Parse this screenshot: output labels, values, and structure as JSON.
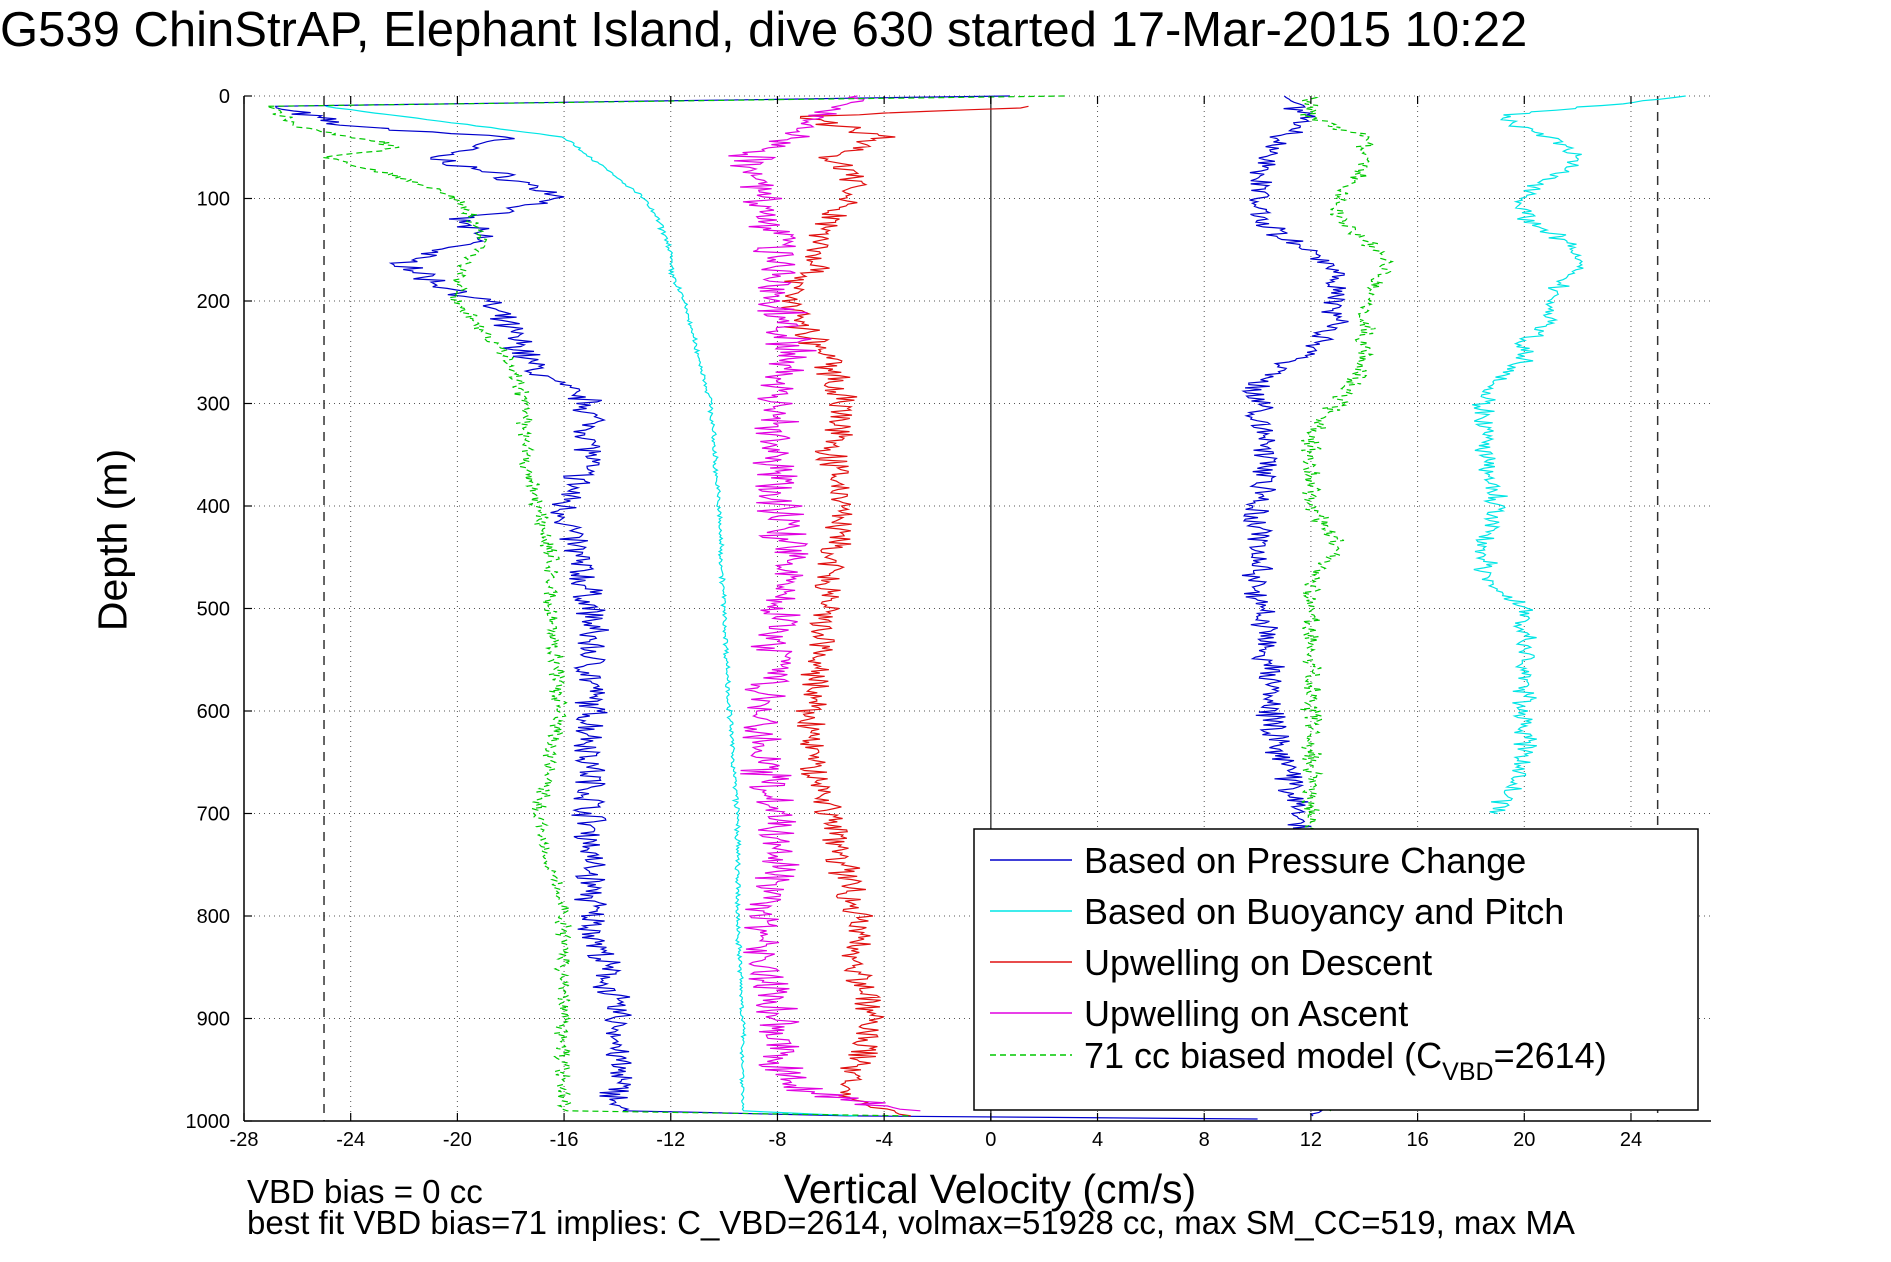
{
  "title": "G539 ChinStrAP, Elephant Island, dive 630 started 17-Mar-2015 10:22",
  "notes": {
    "vbd_bias": "VBD bias = 0 cc",
    "best_fit": "best fit VBD bias=71 implies: C_VBD=2614, volmax=51928 cc, max SM_CC=519, max MA"
  },
  "colors": {
    "pressure": "#0000cc",
    "buoyancy": "#00e5e5",
    "descent": "#e01010",
    "ascent": "#e000e0",
    "model": "#00c800",
    "axis": "#000000",
    "grid": "#555555"
  },
  "chart_data": {
    "type": "line",
    "xlabel": "Vertical Velocity (cm/s)",
    "ylabel": "Depth (m)",
    "xlim": [
      -28,
      27
    ],
    "ylim": [
      0,
      1000
    ],
    "y_reversed": true,
    "grid": true,
    "xticks": [
      -28,
      -24,
      -20,
      -16,
      -12,
      -8,
      -4,
      0,
      4,
      8,
      12,
      16,
      20,
      24
    ],
    "yticks": [
      0,
      100,
      200,
      300,
      400,
      500,
      600,
      700,
      800,
      900,
      1000
    ],
    "reference_lines": [
      -25,
      25
    ],
    "legend_position": "bottom-right",
    "legend": [
      {
        "label": "Based on Pressure Change",
        "color": "#0000cc",
        "style": "solid"
      },
      {
        "label": "Based on Buoyancy and Pitch",
        "color": "#00e5e5",
        "style": "solid"
      },
      {
        "label": "Upwelling on Descent",
        "color": "#e01010",
        "style": "solid"
      },
      {
        "label": "Upwelling on Ascent",
        "color": "#e000e0",
        "style": "solid"
      },
      {
        "label": "71 cc biased model (C",
        "sub": "VBD",
        "suffix": "=2614)",
        "color": "#00c800",
        "style": "dashed"
      }
    ],
    "series": [
      {
        "name": "Based on Pressure Change (descent)",
        "color": "#0000cc",
        "noise": 0.5,
        "points": [
          [
            1,
            0
          ],
          [
            -27,
            10
          ],
          [
            -24,
            30
          ],
          [
            -18,
            40
          ],
          [
            -21,
            60
          ],
          [
            -18,
            80
          ],
          [
            -16,
            100
          ],
          [
            -20,
            120
          ],
          [
            -19,
            140
          ],
          [
            -22,
            160
          ],
          [
            -21,
            180
          ],
          [
            -19,
            200
          ],
          [
            -18,
            230
          ],
          [
            -17,
            270
          ],
          [
            -15,
            300
          ],
          [
            -15,
            350
          ],
          [
            -16,
            400
          ],
          [
            -15.5,
            450
          ],
          [
            -15,
            500
          ],
          [
            -15,
            550
          ],
          [
            -15,
            600
          ],
          [
            -15,
            650
          ],
          [
            -15,
            700
          ],
          [
            -15,
            750
          ],
          [
            -15,
            800
          ],
          [
            -14.5,
            850
          ],
          [
            -14,
            900
          ],
          [
            -14,
            950
          ],
          [
            -14,
            990
          ],
          [
            -5,
            995
          ],
          [
            10,
            998
          ]
        ]
      },
      {
        "name": "Based on Pressure Change (ascent)",
        "color": "#0000cc",
        "noise": 0.45,
        "points": [
          [
            12,
            995
          ],
          [
            12,
            980
          ],
          [
            12,
            940
          ],
          [
            11.5,
            900
          ],
          [
            11.5,
            850
          ],
          [
            11.5,
            800
          ],
          [
            11.5,
            760
          ],
          [
            11.5,
            700
          ],
          [
            11,
            650
          ],
          [
            10.5,
            620
          ],
          [
            10.5,
            560
          ],
          [
            10,
            500
          ],
          [
            10,
            450
          ],
          [
            10,
            400
          ],
          [
            10.5,
            360
          ],
          [
            10,
            320
          ],
          [
            10,
            280
          ],
          [
            12,
            250
          ],
          [
            13,
            220
          ],
          [
            13,
            200
          ],
          [
            13,
            170
          ],
          [
            11,
            140
          ],
          [
            10,
            120
          ],
          [
            10,
            100
          ],
          [
            10,
            70
          ],
          [
            11,
            40
          ],
          [
            12,
            20
          ],
          [
            11,
            0
          ]
        ]
      },
      {
        "name": "Based on Buoyancy and Pitch (descent)",
        "color": "#00e5e5",
        "noise": 0.08,
        "points": [
          [
            -25,
            10
          ],
          [
            -22,
            20
          ],
          [
            -16,
            40
          ],
          [
            -15,
            60
          ],
          [
            -14,
            80
          ],
          [
            -13,
            100
          ],
          [
            -12.5,
            120
          ],
          [
            -12,
            150
          ],
          [
            -12,
            170
          ],
          [
            -11.5,
            200
          ],
          [
            -11,
            250
          ],
          [
            -10.5,
            300
          ],
          [
            -10.2,
            400
          ],
          [
            -10,
            500
          ],
          [
            -9.8,
            600
          ],
          [
            -9.5,
            700
          ],
          [
            -9.5,
            800
          ],
          [
            -9.3,
            900
          ],
          [
            -9.3,
            990
          ],
          [
            -5,
            995
          ]
        ]
      },
      {
        "name": "Based on Buoyancy and Pitch (ascent)",
        "color": "#00e5e5",
        "noise": 0.35,
        "points": [
          [
            26,
            0
          ],
          [
            19,
            20
          ],
          [
            21,
            40
          ],
          [
            22,
            60
          ],
          [
            21,
            80
          ],
          [
            20,
            100
          ],
          [
            20,
            120
          ],
          [
            21.5,
            140
          ],
          [
            22,
            160
          ],
          [
            21,
            200
          ],
          [
            21,
            220
          ],
          [
            20,
            240
          ],
          [
            20,
            260
          ],
          [
            18.5,
            290
          ],
          [
            18.5,
            330
          ],
          [
            18.5,
            360
          ],
          [
            19,
            400
          ],
          [
            18.5,
            430
          ],
          [
            18.5,
            470
          ],
          [
            20,
            500
          ],
          [
            20,
            560
          ],
          [
            20,
            600
          ],
          [
            20,
            650
          ],
          [
            19,
            700
          ]
        ]
      },
      {
        "name": "Upwelling on Descent",
        "color": "#e01010",
        "noise": 0.5,
        "points": [
          [
            2,
            10
          ],
          [
            -7,
            20
          ],
          [
            -4,
            40
          ],
          [
            -6,
            60
          ],
          [
            -5,
            80
          ],
          [
            -6,
            120
          ],
          [
            -6.5,
            160
          ],
          [
            -7.5,
            200
          ],
          [
            -7,
            230
          ],
          [
            -6,
            260
          ],
          [
            -5.5,
            300
          ],
          [
            -6,
            350
          ],
          [
            -5.5,
            400
          ],
          [
            -6,
            450
          ],
          [
            -6.3,
            500
          ],
          [
            -6.5,
            550
          ],
          [
            -6.8,
            600
          ],
          [
            -6.7,
            650
          ],
          [
            -6,
            700
          ],
          [
            -5.5,
            750
          ],
          [
            -5,
            800
          ],
          [
            -5,
            850
          ],
          [
            -4.5,
            900
          ],
          [
            -5,
            950
          ],
          [
            -5.5,
            980
          ],
          [
            -3,
            995
          ]
        ]
      },
      {
        "name": "Upwelling on Ascent",
        "color": "#e000e0",
        "noise": 0.7,
        "points": [
          [
            -3,
            990
          ],
          [
            -7,
            970
          ],
          [
            -8,
            950
          ],
          [
            -8,
            900
          ],
          [
            -8.5,
            850
          ],
          [
            -8.5,
            800
          ],
          [
            -8,
            750
          ],
          [
            -8,
            700
          ],
          [
            -8.5,
            650
          ],
          [
            -8.5,
            600
          ],
          [
            -8,
            550
          ],
          [
            -8,
            500
          ],
          [
            -7.5,
            450
          ],
          [
            -8,
            400
          ],
          [
            -8,
            350
          ],
          [
            -8,
            300
          ],
          [
            -7.5,
            250
          ],
          [
            -8,
            200
          ],
          [
            -8,
            150
          ],
          [
            -8.5,
            100
          ],
          [
            -9,
            60
          ],
          [
            -7,
            30
          ],
          [
            -5,
            0
          ]
        ]
      },
      {
        "name": "71 cc biased model (descent)",
        "color": "#00c800",
        "dashed": true,
        "noise": 0.25,
        "points": [
          [
            3,
            0
          ],
          [
            -27,
            10
          ],
          [
            -26,
            30
          ],
          [
            -22,
            50
          ],
          [
            -25,
            60
          ],
          [
            -22,
            80
          ],
          [
            -20,
            100
          ],
          [
            -19,
            140
          ],
          [
            -20,
            180
          ],
          [
            -20,
            200
          ],
          [
            -19,
            230
          ],
          [
            -18,
            260
          ],
          [
            -17.5,
            300
          ],
          [
            -17.5,
            350
          ],
          [
            -17,
            400
          ],
          [
            -16.5,
            450
          ],
          [
            -16.5,
            500
          ],
          [
            -16.3,
            550
          ],
          [
            -16.2,
            600
          ],
          [
            -16.5,
            650
          ],
          [
            -17,
            700
          ],
          [
            -16.5,
            750
          ],
          [
            -16,
            800
          ],
          [
            -16,
            850
          ],
          [
            -16,
            900
          ],
          [
            -16,
            950
          ],
          [
            -16,
            990
          ],
          [
            -3,
            995
          ]
        ]
      },
      {
        "name": "71 cc biased model (ascent)",
        "color": "#00c800",
        "dashed": true,
        "noise": 0.3,
        "points": [
          [
            13,
            990
          ],
          [
            12,
            950
          ],
          [
            12,
            900
          ],
          [
            12,
            850
          ],
          [
            12,
            800
          ],
          [
            12,
            750
          ],
          [
            12,
            700
          ],
          [
            12,
            650
          ],
          [
            12,
            600
          ],
          [
            12,
            550
          ],
          [
            12,
            500
          ],
          [
            12,
            480
          ],
          [
            13,
            440
          ],
          [
            12,
            400
          ],
          [
            12,
            360
          ],
          [
            12,
            330
          ],
          [
            13,
            300
          ],
          [
            14,
            260
          ],
          [
            14,
            230
          ],
          [
            14,
            200
          ],
          [
            15,
            160
          ],
          [
            13,
            120
          ],
          [
            13,
            100
          ],
          [
            14,
            70
          ],
          [
            14,
            40
          ],
          [
            12,
            20
          ],
          [
            12,
            0
          ]
        ]
      }
    ]
  }
}
